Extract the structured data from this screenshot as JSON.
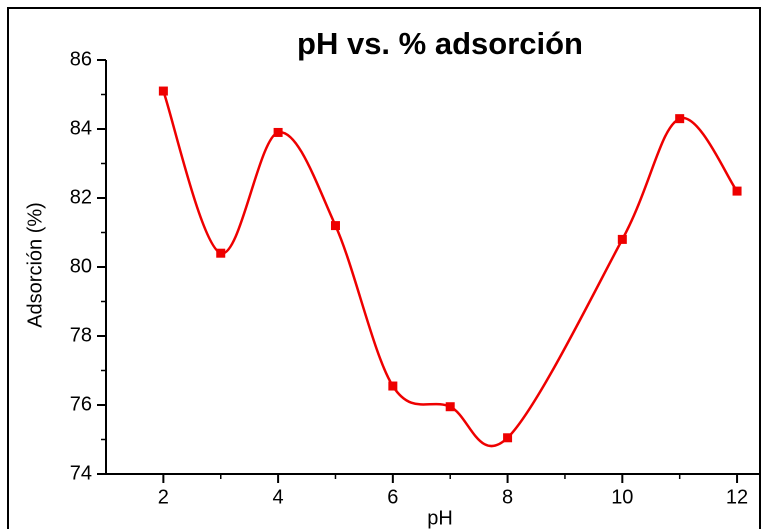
{
  "chart_data": {
    "type": "line",
    "title": "pH vs. % adsorción",
    "x_label": "pH",
    "y_label": "Adsorción (%)",
    "series": [
      {
        "name": "Adsorción",
        "color": "#ee0000",
        "x": [
          2,
          3,
          4,
          5,
          6,
          7,
          8,
          10,
          11,
          12
        ],
        "values": [
          85.1,
          80.4,
          83.9,
          81.2,
          76.55,
          75.95,
          75.05,
          80.8,
          84.3,
          82.2
        ]
      }
    ],
    "xlim": [
      1,
      12.4
    ],
    "xticks": [
      2,
      4,
      6,
      8,
      10,
      12
    ],
    "ylim": [
      74,
      86
    ],
    "yticks": [
      74,
      76,
      78,
      80,
      82,
      84,
      86
    ]
  }
}
